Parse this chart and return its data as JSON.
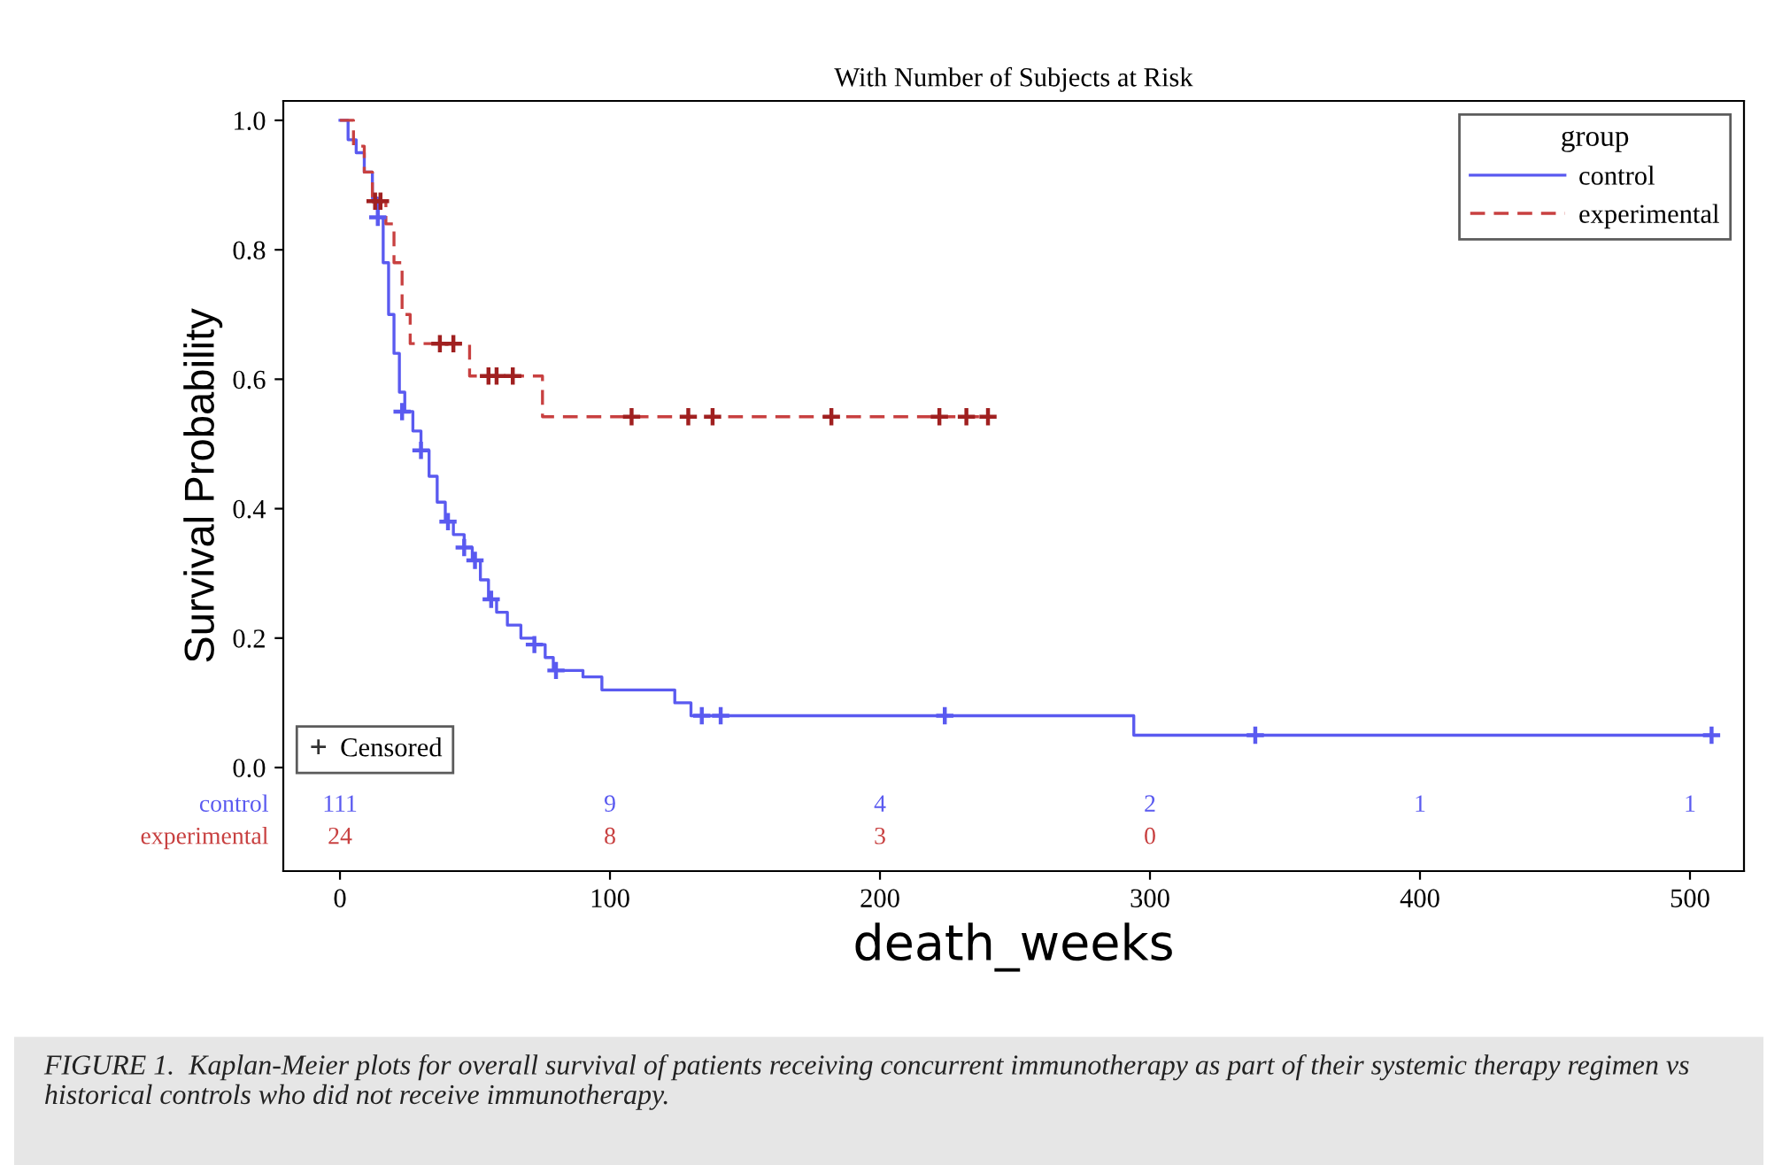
{
  "chart_data": {
    "type": "step",
    "title": "With Number of Subjects at Risk",
    "xlabel": "death_weeks",
    "ylabel": "Survival Probability",
    "legend_title": "group",
    "legend": "top right",
    "xlim": [
      -21,
      520
    ],
    "ylim": [
      -0.16,
      1.03
    ],
    "xticks": [
      0,
      100,
      200,
      300,
      400,
      500
    ],
    "yticks": [
      {
        "value": 0,
        "label": "0.0"
      },
      {
        "value": 0.2,
        "label": "0.2"
      },
      {
        "value": 0.4,
        "label": "0.4"
      },
      {
        "value": 0.6,
        "label": "0.6"
      },
      {
        "value": 0.8,
        "label": "0.8"
      },
      {
        "value": 1,
        "label": "1.0"
      }
    ],
    "grid": false,
    "series": [
      {
        "name": "control",
        "color": "#5a5af0",
        "line_style": "solid",
        "x": [
          0,
          3,
          6,
          9,
          12,
          14,
          16,
          18,
          20,
          22,
          24,
          27,
          30,
          33,
          36,
          39,
          42,
          46,
          49,
          52,
          55,
          58,
          62,
          67,
          72,
          76,
          79,
          90,
          97,
          124,
          130,
          294,
          508
        ],
        "values": [
          1.0,
          0.97,
          0.95,
          0.92,
          0.88,
          0.85,
          0.78,
          0.7,
          0.64,
          0.58,
          0.55,
          0.52,
          0.49,
          0.45,
          0.41,
          0.38,
          0.36,
          0.34,
          0.32,
          0.29,
          0.26,
          0.24,
          0.22,
          0.2,
          0.19,
          0.17,
          0.15,
          0.14,
          0.12,
          0.1,
          0.08,
          0.05,
          0.05
        ]
      },
      {
        "name": "experimental",
        "color": "#c84040",
        "line_style": "dashed",
        "x": [
          0,
          5,
          9,
          12,
          17,
          20,
          23,
          26,
          48,
          75,
          240
        ],
        "values": [
          1.0,
          0.96,
          0.92,
          0.875,
          0.84,
          0.78,
          0.7,
          0.655,
          0.605,
          0.542,
          0.542
        ]
      },
      {
        "type": "scatter",
        "marker": "cross",
        "color": "#5a5af0",
        "x": [
          14,
          23,
          30,
          40,
          46,
          50,
          56,
          72,
          80,
          134,
          141,
          224,
          339,
          508
        ],
        "values": [
          0.85,
          0.55,
          0.49,
          0.38,
          0.34,
          0.32,
          0.26,
          0.19,
          0.15,
          0.08,
          0.08,
          0.08,
          0.05,
          0.05
        ]
      },
      {
        "type": "scatter",
        "marker": "cross",
        "color": "#a02020",
        "x": [
          13,
          15,
          37,
          42,
          55,
          58,
          64,
          108,
          129,
          138,
          182,
          222,
          232,
          240
        ],
        "values": [
          0.875,
          0.875,
          0.655,
          0.655,
          0.605,
          0.605,
          0.605,
          0.542,
          0.542,
          0.542,
          0.542,
          0.542,
          0.542,
          0.542
        ]
      }
    ],
    "annotations": [
      "Censored",
      "FIGURE 1.  Kaplan-Meier plots for overall survival of patients receiving concurrent immunotherapy as part of their systemic therapy regimen vs historical controls who did not receive immunotherapy.",
      "control",
      "111",
      "9",
      "4",
      "2",
      "1",
      "1",
      "experimental",
      "24",
      "8",
      "3",
      "0"
    ]
  }
}
